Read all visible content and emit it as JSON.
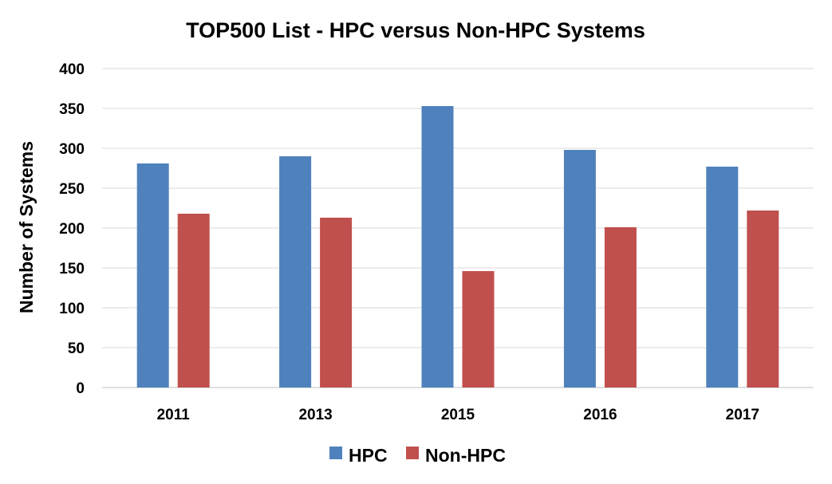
{
  "chart_data": {
    "type": "bar",
    "title": "TOP500 List - HPC versus Non-HPC Systems",
    "xlabel": "",
    "ylabel": "Number of Systems",
    "categories": [
      "2011",
      "2013",
      "2015",
      "2016",
      "2017"
    ],
    "series": [
      {
        "name": "HPC",
        "color": "#4f81bd",
        "values": [
          281,
          290,
          353,
          298,
          277
        ]
      },
      {
        "name": "Non-HPC",
        "color": "#c0504d",
        "values": [
          218,
          213,
          146,
          201,
          222
        ]
      }
    ],
    "ylim": [
      0,
      400
    ],
    "yticks": [
      "0",
      "50",
      "100",
      "150",
      "200",
      "250",
      "300",
      "350",
      "400"
    ],
    "grid": true,
    "legend_position": "bottom"
  }
}
